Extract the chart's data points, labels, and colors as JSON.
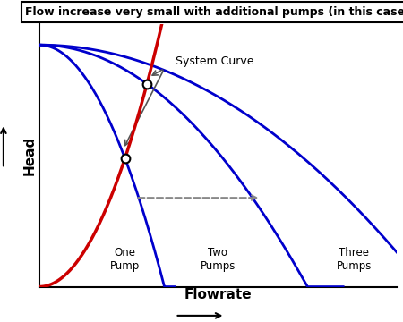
{
  "title": "Flow increase very small with additional pumps (in this case)",
  "xlabel": "Flowrate",
  "ylabel": "Head",
  "bg_color": "#ffffff",
  "system_curve_color": "#cc0000",
  "pump_curve_color": "#0000cc",
  "arrow_color": "#888888",
  "one_pump_label": "One\nPump",
  "two_pumps_label": "Two\nPumps",
  "three_pumps_label": "Three\nPumps",
  "system_curve_label": "System Curve",
  "xlim": [
    0,
    10
  ],
  "ylim": [
    0,
    10
  ]
}
